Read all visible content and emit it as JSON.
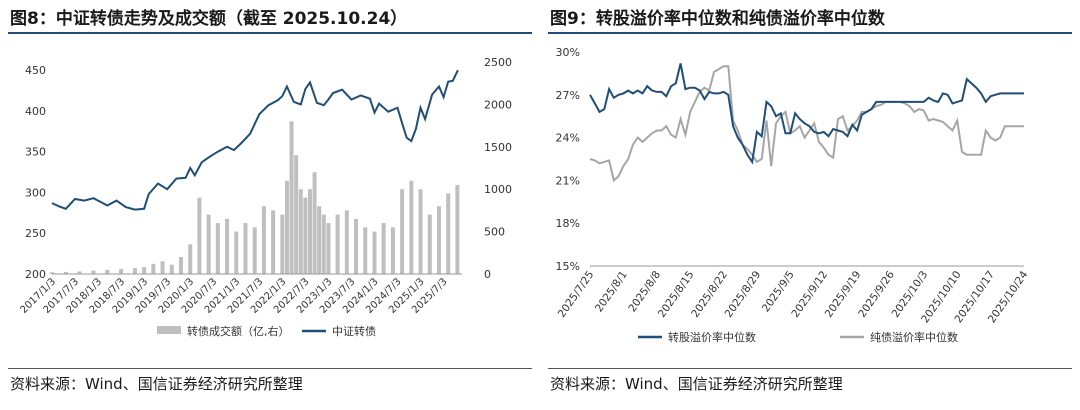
{
  "left": {
    "figure_title": "图8：中证转债走势及成交额（截至 2025.10.24）",
    "source": "资料来源：Wind、国信证券经济研究所整理"
  },
  "right": {
    "figure_title": "图9：转股溢价率中位数和纯债溢价率中位数",
    "source": "资料来源：Wind、国信证券经济研究所整理"
  },
  "colors": {
    "navy": "#1f4e79",
    "gray": "#a6a6a6",
    "bar_gray": "#bfbfbf"
  },
  "chart_data": [
    {
      "type": "line",
      "title": "",
      "x_tick_labels": [
        "2017/1/3",
        "2017/7/3",
        "2018/1/3",
        "2018/7/3",
        "2019/1/3",
        "2019/7/3",
        "2020/1/3",
        "2020/7/3",
        "2021/1/3",
        "2021/7/3",
        "2022/1/3",
        "2022/7/3",
        "2023/1/3",
        "2023/7/3",
        "2024/1/3",
        "2024/7/3",
        "2025/1/3",
        "2025/7/3"
      ],
      "y_left": {
        "ticks": [
          "200",
          "250",
          "300",
          "350",
          "400",
          "450"
        ],
        "ylim": [
          200,
          460
        ]
      },
      "y_right": {
        "ticks": [
          "0",
          "500",
          "1000",
          "1500",
          "2000",
          "2500"
        ],
        "ylim": [
          0,
          2500
        ]
      },
      "series": [
        {
          "name": "中证转债",
          "axis": "left",
          "style": "line",
          "x": [
            2017.0,
            2017.15,
            2017.3,
            2017.5,
            2017.7,
            2017.9,
            2018.0,
            2018.2,
            2018.4,
            2018.6,
            2018.8,
            2019.0,
            2019.1,
            2019.3,
            2019.5,
            2019.7,
            2019.9,
            2020.0,
            2020.1,
            2020.25,
            2020.4,
            2020.6,
            2020.8,
            2020.95,
            2021.1,
            2021.3,
            2021.5,
            2021.7,
            2021.9,
            2022.0,
            2022.1,
            2022.25,
            2022.4,
            2022.5,
            2022.6,
            2022.75,
            2022.9,
            2023.0,
            2023.1,
            2023.3,
            2023.5,
            2023.7,
            2023.9,
            2024.0,
            2024.1,
            2024.3,
            2024.5,
            2024.6,
            2024.7,
            2024.8,
            2024.9,
            2025.0,
            2025.1,
            2025.25,
            2025.4,
            2025.5,
            2025.6,
            2025.7,
            2025.81
          ],
          "values": [
            287,
            283,
            280,
            292,
            290,
            293,
            290,
            284,
            290,
            282,
            279,
            280,
            298,
            311,
            304,
            317,
            318,
            330,
            321,
            337,
            343,
            350,
            356,
            352,
            360,
            372,
            396,
            407,
            413,
            418,
            430,
            411,
            408,
            427,
            435,
            410,
            407,
            414,
            422,
            426,
            414,
            419,
            415,
            398,
            409,
            399,
            404,
            385,
            367,
            363,
            378,
            404,
            390,
            420,
            430,
            417,
            436,
            437,
            450
          ]
        },
        {
          "name": "转债成交额（亿,右）",
          "axis": "right",
          "style": "bars",
          "x": [
            2017.0,
            2017.3,
            2017.6,
            2017.9,
            2018.2,
            2018.5,
            2018.8,
            2019.0,
            2019.2,
            2019.4,
            2019.6,
            2019.8,
            2020.0,
            2020.2,
            2020.4,
            2020.6,
            2020.8,
            2021.0,
            2021.2,
            2021.4,
            2021.6,
            2021.8,
            2022.0,
            2022.1,
            2022.2,
            2022.3,
            2022.4,
            2022.5,
            2022.6,
            2022.7,
            2022.8,
            2022.9,
            2023.0,
            2023.2,
            2023.4,
            2023.6,
            2023.8,
            2024.0,
            2024.2,
            2024.4,
            2024.6,
            2024.8,
            2025.0,
            2025.2,
            2025.4,
            2025.6,
            2025.8
          ],
          "values": [
            20,
            25,
            30,
            40,
            50,
            60,
            70,
            80,
            120,
            150,
            110,
            200,
            350,
            900,
            700,
            600,
            650,
            500,
            600,
            550,
            800,
            750,
            700,
            1100,
            1800,
            1400,
            1000,
            900,
            1000,
            1200,
            800,
            700,
            600,
            700,
            750,
            650,
            550,
            500,
            600,
            550,
            1000,
            1100,
            1000,
            700,
            800,
            950,
            1050
          ]
        }
      ],
      "legend": [
        "转债成交额（亿,右）",
        "中证转债"
      ],
      "legend_position": "bottom",
      "grid": false
    },
    {
      "type": "line",
      "title": "",
      "x_tick_labels": [
        "2025/7/25",
        "2025/8/1",
        "2025/8/8",
        "2025/8/15",
        "2025/8/22",
        "2025/8/29",
        "2025/9/5",
        "2025/9/12",
        "2025/9/19",
        "2025/9/26",
        "2025/10/3",
        "2025/10/10",
        "2025/10/17",
        "2025/10/24"
      ],
      "y": {
        "ticks": [
          "15%",
          "18%",
          "21%",
          "24%",
          "27%",
          "30%"
        ],
        "ylim": [
          15,
          30
        ]
      },
      "series": [
        {
          "name": "转股溢价率中位数",
          "x": [
            0,
            1,
            2,
            3,
            4,
            5,
            6,
            7,
            8,
            9,
            10,
            11,
            12,
            13,
            14,
            15,
            16,
            17,
            18,
            19,
            20,
            21,
            22,
            23,
            24,
            25,
            26,
            27,
            28,
            29,
            30,
            31,
            32,
            33,
            34,
            35,
            36,
            37,
            38,
            39,
            40,
            41,
            42,
            43,
            44,
            45,
            46,
            47,
            48,
            49,
            50,
            51,
            52,
            53,
            54,
            55,
            56,
            57,
            58,
            59,
            60,
            61,
            62,
            63,
            64,
            65,
            66,
            67,
            68,
            69,
            70,
            71,
            72,
            73,
            74,
            75,
            76,
            77,
            78,
            79,
            80,
            81,
            82,
            83,
            84,
            85,
            86,
            87,
            88,
            89,
            90,
            91
          ],
          "values": [
            27.0,
            26.4,
            25.8,
            26.0,
            27.4,
            26.8,
            27.0,
            27.1,
            27.3,
            27.1,
            27.3,
            27.1,
            27.6,
            27.3,
            27.2,
            27.2,
            26.9,
            27.6,
            27.8,
            29.2,
            27.4,
            27.5,
            27.5,
            27.3,
            26.7,
            27.2,
            27.1,
            27.1,
            27.2,
            27.0,
            24.8,
            24.0,
            23.5,
            22.8,
            22.3,
            24.4,
            24.1,
            26.5,
            26.2,
            25.5,
            25.7,
            24.3,
            24.3,
            25.7,
            25.3,
            25.0,
            24.8,
            24.4,
            24.3,
            24.4,
            24.1,
            24.6,
            24.5,
            24.4,
            24.1,
            24.9,
            24.5,
            25.6,
            25.8,
            26.0,
            26.5,
            26.5,
            26.5,
            26.5,
            26.5,
            26.5,
            26.5,
            26.5,
            26.5,
            26.5,
            26.5,
            26.8,
            26.6,
            26.5,
            27.1,
            27.0,
            26.4,
            26.5,
            26.6,
            28.1,
            27.8,
            27.5,
            27.1,
            26.5,
            26.9,
            27.0,
            27.1,
            27.1,
            27.1,
            27.1,
            27.1,
            27.1
          ]
        },
        {
          "name": "纯债溢价率中位数",
          "x": [
            0,
            1,
            2,
            3,
            4,
            5,
            6,
            7,
            8,
            9,
            10,
            11,
            12,
            13,
            14,
            15,
            16,
            17,
            18,
            19,
            20,
            21,
            22,
            23,
            24,
            25,
            26,
            27,
            28,
            29,
            30,
            31,
            32,
            33,
            34,
            35,
            36,
            37,
            38,
            39,
            40,
            41,
            42,
            43,
            44,
            45,
            46,
            47,
            48,
            49,
            50,
            51,
            52,
            53,
            54,
            55,
            56,
            57,
            58,
            59,
            60,
            61,
            62,
            63,
            64,
            65,
            66,
            67,
            68,
            69,
            70,
            71,
            72,
            73,
            74,
            75,
            76,
            77,
            78,
            79,
            80,
            81,
            82,
            83,
            84,
            85,
            86,
            87,
            88,
            89,
            90,
            91
          ],
          "values": [
            22.5,
            22.4,
            22.2,
            22.3,
            22.4,
            21.0,
            21.3,
            22.0,
            22.5,
            23.5,
            24.0,
            23.7,
            24.0,
            24.3,
            24.5,
            24.5,
            24.8,
            24.2,
            24.0,
            25.3,
            24.2,
            25.8,
            26.5,
            27.2,
            27.5,
            27.3,
            28.6,
            28.8,
            29.0,
            29.0,
            25.2,
            24.5,
            23.5,
            23.2,
            22.8,
            22.3,
            22.5,
            25.2,
            22.0,
            25.0,
            25.5,
            25.8,
            24.3,
            24.5,
            24.8,
            24.0,
            24.5,
            25.0,
            23.7,
            23.3,
            22.8,
            22.6,
            25.3,
            25.5,
            24.5,
            24.8,
            25.2,
            25.8,
            25.8,
            26.0,
            26.2,
            26.3,
            26.5,
            26.5,
            26.5,
            26.5,
            26.4,
            26.2,
            25.8,
            26.0,
            25.9,
            25.2,
            25.3,
            25.2,
            25.1,
            24.8,
            24.5,
            25.2,
            23.0,
            22.8,
            22.8,
            22.8,
            22.8,
            24.5,
            24.0,
            23.8,
            24.0,
            24.8,
            24.8,
            24.8,
            24.8,
            24.8
          ]
        }
      ],
      "legend": [
        "转股溢价率中位数",
        "纯债溢价率中位数"
      ],
      "legend_position": "bottom",
      "grid": false
    }
  ]
}
